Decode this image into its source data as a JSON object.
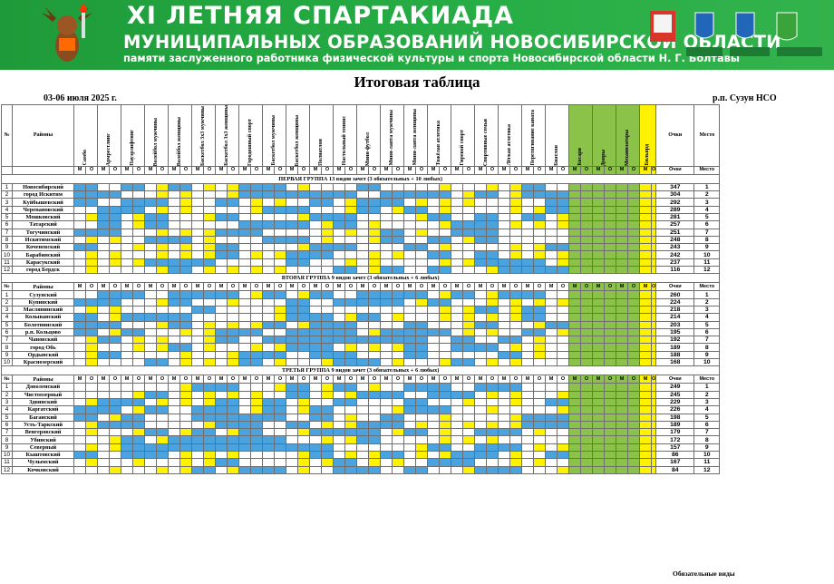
{
  "banner": {
    "line1": "XI ЛЕТНЯЯ СПАРТАКИАДА",
    "line2": "МУНИЦИПАЛЬНЫХ ОБРАЗОВАНИЙ НОВОСИБИРСКОЙ ОБЛАСТИ",
    "line3": "памяти заслуженного работника физической культуры и спорта Новосибирской области Н. Г. Болтавы"
  },
  "title": "Итоговая таблица",
  "date": "03-06 июля 2025 г.",
  "place": "р.п. Сузун НСО",
  "header": {
    "num": "№",
    "rayony": "Районы",
    "sports": [
      "Самбо",
      "Армрестлинг",
      "Пауэрлифтинг",
      "Волейбол мужчины",
      "Волейбол женщины",
      "Баскетбол 3х3 мужчины",
      "Баскетбол 3х3 женщины",
      "Городошный спорт",
      "Баскетбол мужчины",
      "Баскетбол женщины",
      "Полиатлон",
      "Настольный теннис",
      "Мини-футбол",
      "Мини-лапта мужчины",
      "Мини-лапта женщины",
      "Тяжёлая атлетика",
      "Гиревой спорт",
      "Спортивные семьи",
      "Лёгкая атлетика",
      "Перетягивание каната",
      "Биатлон",
      "Косари",
      "Дояры",
      "Механизаторы",
      "Бильярд"
    ],
    "ochki": "Очки",
    "mesto": "Место",
    "m": "М",
    "o": "О"
  },
  "groups": [
    {
      "title": "ПЕРВАЯ ГРУППА 13 видов зачет (3 обязательных + 10 любых)",
      "rows": [
        {
          "n": "1",
          "name": "Новосибирский",
          "pts": "347",
          "place": "1"
        },
        {
          "n": "2",
          "name": "город Искитим",
          "pts": "304",
          "place": "2"
        },
        {
          "n": "3",
          "name": "Куйбышевский",
          "pts": "292",
          "place": "3"
        },
        {
          "n": "4",
          "name": "Черепановский",
          "pts": "289",
          "place": "4"
        },
        {
          "n": "5",
          "name": "Мошковский",
          "pts": "281",
          "place": "5"
        },
        {
          "n": "6",
          "name": "Татарский",
          "pts": "257",
          "place": "6"
        },
        {
          "n": "7",
          "name": "Тогучинский",
          "pts": "251",
          "place": "7"
        },
        {
          "n": "8",
          "name": "Искитимский",
          "pts": "248",
          "place": "8"
        },
        {
          "n": "9",
          "name": "Коченевский",
          "pts": "243",
          "place": "9"
        },
        {
          "n": "10",
          "name": "Барабинский",
          "pts": "242",
          "place": "10"
        },
        {
          "n": "11",
          "name": "Карасукский",
          "pts": "237",
          "place": "11"
        },
        {
          "n": "12",
          "name": "город Бердск",
          "pts": "116",
          "place": "12"
        }
      ]
    },
    {
      "title": "ВТОРАЯ ГРУППА 9 видов зачет (3 обязательных + 6 любых)",
      "rows": [
        {
          "n": "1",
          "name": "Сузунский",
          "pts": "260",
          "place": "1"
        },
        {
          "n": "2",
          "name": "Купинский",
          "pts": "224",
          "place": "2"
        },
        {
          "n": "3",
          "name": "Маслянинский",
          "pts": "218",
          "place": "3"
        },
        {
          "n": "4",
          "name": "Колыванский",
          "pts": "214",
          "place": "4"
        },
        {
          "n": "5",
          "name": "Болотнинский",
          "pts": "203",
          "place": "5"
        },
        {
          "n": "6",
          "name": "р.п. Кольцово",
          "pts": "195",
          "place": "6"
        },
        {
          "n": "7",
          "name": "Чановский",
          "pts": "192",
          "place": "7"
        },
        {
          "n": "8",
          "name": "город Обь",
          "pts": "189",
          "place": "8"
        },
        {
          "n": "9",
          "name": "Ордынский",
          "pts": "188",
          "place": "9"
        },
        {
          "n": "10",
          "name": "Краснозерский",
          "pts": "168",
          "place": "10"
        }
      ]
    },
    {
      "title": "ТРЕТЬЯ ГРУППА 9 видов зачет (3 обязательных + 6 любых)",
      "rows": [
        {
          "n": "1",
          "name": "Доволенский",
          "pts": "249",
          "place": "1"
        },
        {
          "n": "2",
          "name": "Чистоозерный",
          "pts": "245",
          "place": "2"
        },
        {
          "n": "3",
          "name": "Здвинский",
          "pts": "229",
          "place": "3"
        },
        {
          "n": "4",
          "name": "Каргатский",
          "pts": "226",
          "place": "4"
        },
        {
          "n": "5",
          "name": "Баганский",
          "pts": "198",
          "place": "5"
        },
        {
          "n": "6",
          "name": "Усть-Таркский",
          "pts": "189",
          "place": "6"
        },
        {
          "n": "7",
          "name": "Венгеровский",
          "pts": "179",
          "place": "7"
        },
        {
          "n": "8",
          "name": "Убинский",
          "pts": "172",
          "place": "8"
        },
        {
          "n": "9",
          "name": "Северный",
          "pts": "157",
          "place": "9"
        },
        {
          "n": "10",
          "name": "Кыштовский",
          "pts": "86",
          "place": "10"
        },
        {
          "n": "11",
          "name": "Чулымский",
          "pts": "167",
          "place": "11"
        },
        {
          "n": "12",
          "name": "Кочковский",
          "pts": "84",
          "place": "12"
        }
      ]
    }
  ],
  "footer": "Обязательные виды",
  "colors": {
    "blue": "#4aa3df",
    "yellow": "#fff200",
    "green": "#8bc34a",
    "red": "#ff1010",
    "banner": "#22a640"
  }
}
